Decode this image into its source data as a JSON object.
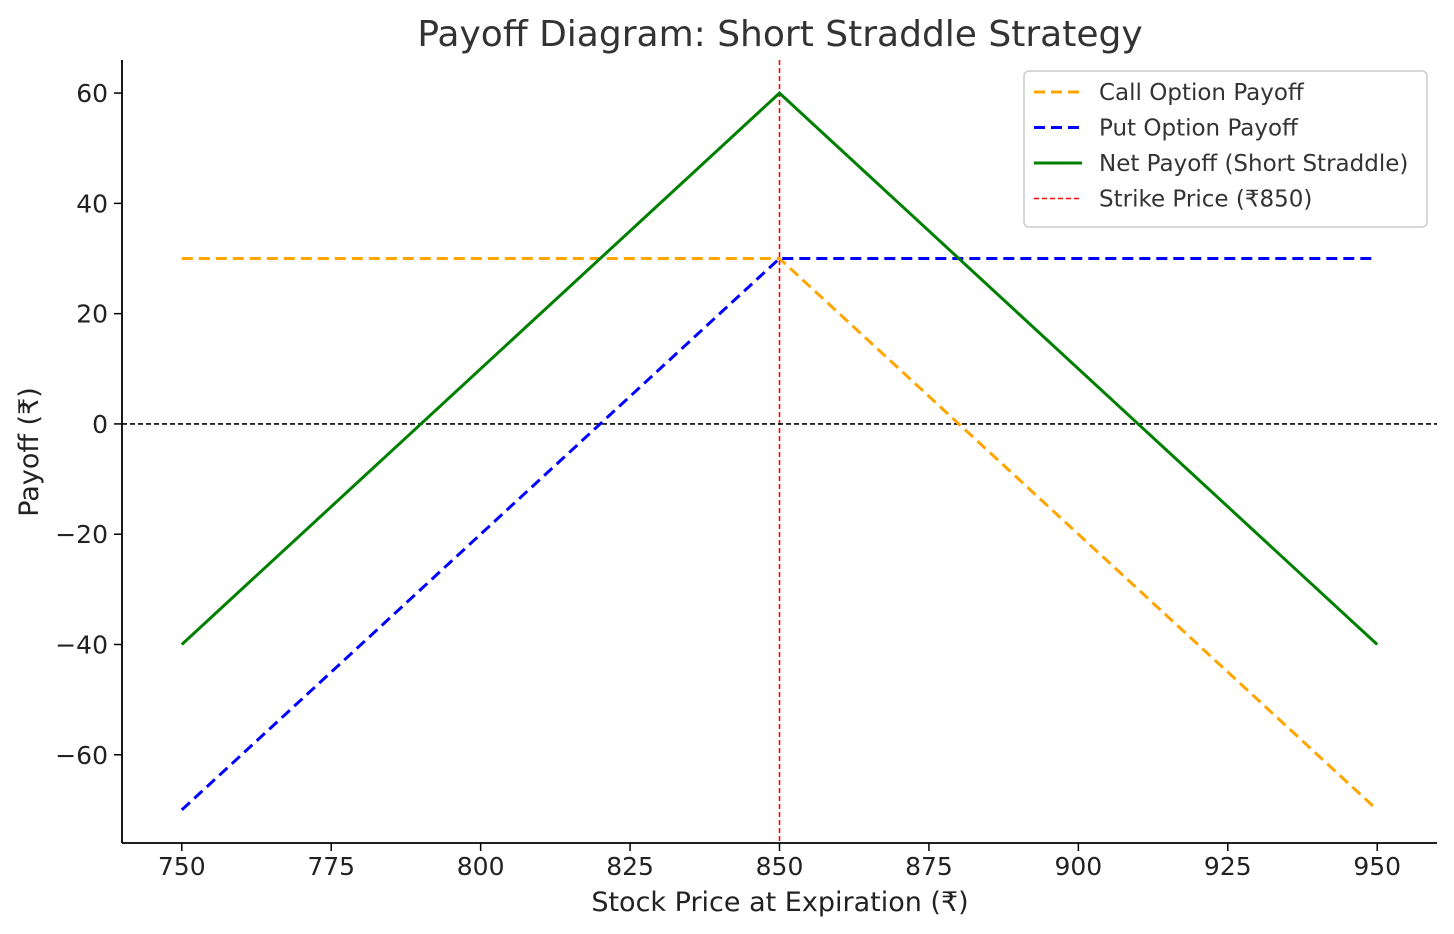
{
  "chart_data": {
    "type": "line",
    "title": "Payoff Diagram: Short Straddle Strategy",
    "xlabel": "Stock Price at Expiration (₹)",
    "ylabel": "Payoff (₹)",
    "xlim": [
      740,
      960
    ],
    "ylim": [
      -76,
      66
    ],
    "x_ticks": [
      750,
      775,
      800,
      825,
      850,
      875,
      900,
      925,
      950
    ],
    "y_ticks": [
      -60,
      -40,
      -20,
      0,
      20,
      40,
      60
    ],
    "x_tick_labels": [
      "750",
      "775",
      "800",
      "825",
      "850",
      "875",
      "900",
      "925",
      "950"
    ],
    "y_tick_labels": [
      "−60",
      "−40",
      "−20",
      "0",
      "20",
      "40",
      "60"
    ],
    "grid": false,
    "legend_position": "top-right",
    "series": [
      {
        "name": "Call Option Payoff",
        "color": "#ffa500",
        "style": "dashed",
        "x": [
          750,
          850,
          950
        ],
        "y": [
          30,
          30,
          -70
        ]
      },
      {
        "name": "Put Option Payoff",
        "color": "#0000ff",
        "style": "dashed",
        "x": [
          750,
          850,
          950
        ],
        "y": [
          -70,
          30,
          30
        ]
      },
      {
        "name": "Net Payoff (Short Straddle)",
        "color": "#008000",
        "style": "solid",
        "x": [
          750,
          850,
          950
        ],
        "y": [
          -40,
          60,
          -40
        ]
      }
    ],
    "reference_lines": [
      {
        "name": "Strike Price (₹850)",
        "orientation": "vertical",
        "value": 850,
        "color": "#ff0000",
        "style": "dashed",
        "in_legend": true
      },
      {
        "name": "",
        "orientation": "horizontal",
        "value": 0,
        "color": "#000000",
        "style": "dashed",
        "in_legend": false
      }
    ]
  }
}
